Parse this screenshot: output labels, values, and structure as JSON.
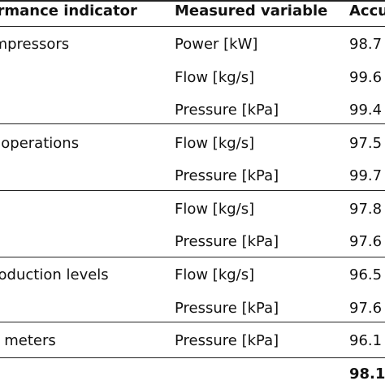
{
  "table": {
    "headers": [
      "Performance indicator",
      "Measured variable",
      "Accuracy"
    ],
    "rows": [
      {
        "indicator": "Compressors",
        "variable": "Power [kW]",
        "accuracy": "98.7"
      },
      {
        "indicator": "",
        "variable": "Flow [kg/s]",
        "accuracy": "99.6"
      },
      {
        "indicator": "",
        "variable": "Pressure [kPa]",
        "accuracy": "99.4"
      },
      {
        "indicator": "Daily operations",
        "variable": "Flow [kg/s]",
        "accuracy": "97.5"
      },
      {
        "indicator": "",
        "variable": "Pressure [kPa]",
        "accuracy": "99.7"
      },
      {
        "indicator": "",
        "variable": "Flow [kg/s]",
        "accuracy": "97.8"
      },
      {
        "indicator": "",
        "variable": "Pressure [kPa]",
        "accuracy": "97.6"
      },
      {
        "indicator": "Production levels",
        "variable": "Flow [kg/s]",
        "accuracy": "96.5"
      },
      {
        "indicator": "",
        "variable": "Pressure [kPa]",
        "accuracy": "97.6"
      },
      {
        "indicator": "Field meters",
        "variable": "Pressure [kPa]",
        "accuracy": "96.1"
      }
    ],
    "total": {
      "accuracy": "98.1"
    }
  }
}
